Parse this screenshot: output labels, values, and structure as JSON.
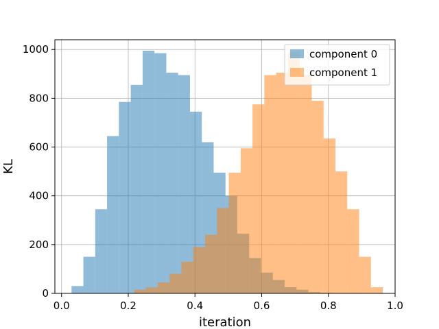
{
  "chart_data": {
    "type": "histogram",
    "xlabel": "iteration",
    "ylabel": "KL",
    "xlim": [
      -0.02,
      1.0
    ],
    "ylim": [
      0,
      1040
    ],
    "xticks": [
      0.0,
      0.2,
      0.4,
      0.6,
      0.8,
      1.0
    ],
    "xtick_labels": [
      "0.0",
      "0.2",
      "0.4",
      "0.6",
      "0.8",
      "1.0"
    ],
    "yticks": [
      0,
      200,
      400,
      600,
      800,
      1000
    ],
    "ytick_labels": [
      "0",
      "200",
      "400",
      "600",
      "800",
      "1000"
    ],
    "grid": true,
    "legend_position": "top-right",
    "series": [
      {
        "name": "component 0",
        "color": "#1f77b4",
        "alpha": 0.5,
        "bin_start": 0.03,
        "bin_width": 0.0355,
        "counts": [
          30,
          150,
          345,
          645,
          785,
          855,
          995,
          985,
          905,
          895,
          745,
          620,
          495,
          400,
          245,
          145,
          85,
          55,
          25,
          15,
          5,
          2,
          0,
          0,
          0,
          0
        ]
      },
      {
        "name": "component 1",
        "color": "#ff7f0e",
        "alpha": 0.5,
        "bin_start": 0.04,
        "bin_width": 0.0355,
        "counts": [
          0,
          0,
          0,
          0,
          0,
          15,
          25,
          45,
          80,
          130,
          190,
          240,
          350,
          495,
          595,
          775,
          895,
          905,
          990,
          895,
          790,
          635,
          500,
          345,
          150,
          25
        ]
      }
    ]
  }
}
